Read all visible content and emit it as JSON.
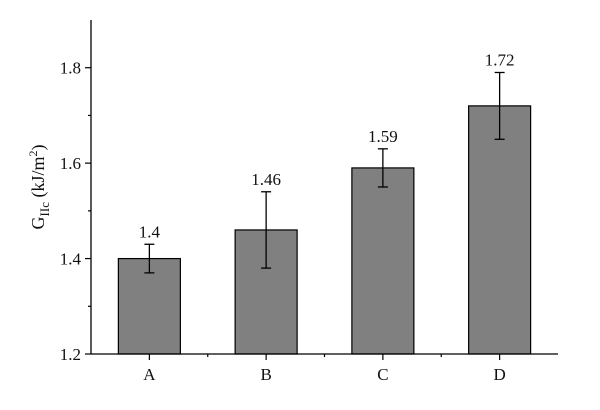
{
  "chart_data": {
    "type": "bar",
    "title": "",
    "xlabel": "",
    "ylabel": {
      "main": "G",
      "subscript": "IIc",
      "unit_prefix": " (kJ/m",
      "unit_sup": "2",
      "unit_suffix": ")"
    },
    "categories": [
      "A",
      "B",
      "C",
      "D"
    ],
    "values": [
      1.4,
      1.46,
      1.59,
      1.72
    ],
    "value_labels": [
      "1.4",
      "1.46",
      "1.59",
      "1.72"
    ],
    "errors": [
      0.03,
      0.08,
      0.04,
      0.07
    ],
    "ylim": [
      1.2,
      1.9
    ],
    "yticks": [
      1.2,
      1.4,
      1.6,
      1.8
    ],
    "ytick_labels": [
      "1.2",
      "1.4",
      "1.6",
      "1.8"
    ],
    "grid": false,
    "legend": "none",
    "bar_color": "#808080"
  }
}
